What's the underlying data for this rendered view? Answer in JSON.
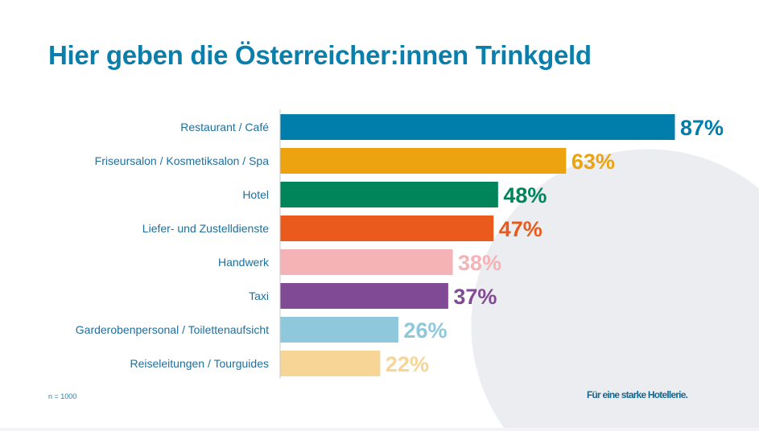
{
  "title": "Hier geben die Österreicher:innen Trinkgeld",
  "note": "n = 1000",
  "slogan": "Für eine starke Hotellerie.",
  "chart_data": {
    "type": "bar",
    "orientation": "horizontal",
    "title": "Hier geben die Österreicher:innen Trinkgeld",
    "categories": [
      "Restaurant / Café",
      "Friseursalon / Kosmetiksalon / Spa",
      "Hotel",
      "Liefer- und Zustelldienste",
      "Handwerk",
      "Taxi",
      "Garderobenpersonal / Toilettenaufsicht",
      "Reiseleitungen / Tourguides"
    ],
    "values": [
      87,
      63,
      48,
      47,
      38,
      37,
      26,
      22
    ],
    "labels": [
      "87%",
      "63%",
      "48%",
      "47%",
      "38%",
      "37%",
      "26%",
      "22%"
    ],
    "colors": [
      "#007eab",
      "#eca30f",
      "#00845a",
      "#e95a1c",
      "#f5b3b7",
      "#814a95",
      "#8fc8dc",
      "#f6d597"
    ],
    "xlim": [
      0,
      100
    ],
    "unit": "%"
  }
}
